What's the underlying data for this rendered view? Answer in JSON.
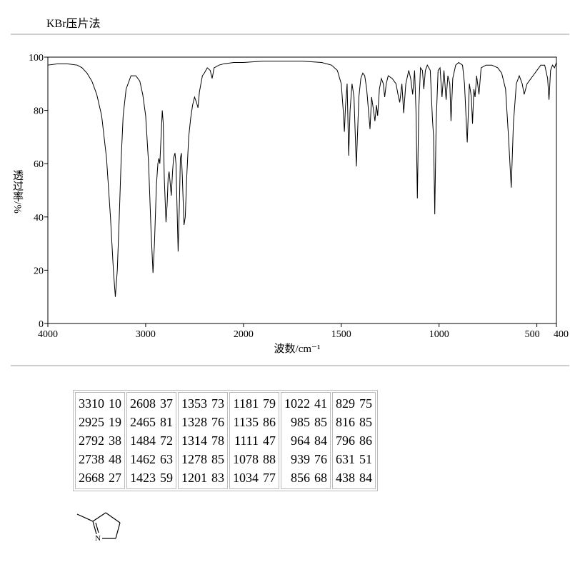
{
  "header": {
    "method": "KBr压片法"
  },
  "chart_data": {
    "type": "line",
    "xlabel": "波数/cm⁻¹",
    "ylabel": "透过率/%",
    "xlim": [
      4000,
      400
    ],
    "xticks": [
      4000,
      3000,
      2000,
      1500,
      1000,
      500,
      400
    ],
    "xscale": "two-segment",
    "xbreak": 2000,
    "ylim": [
      0,
      100
    ],
    "yticks": [
      0,
      20,
      40,
      60,
      80,
      100
    ],
    "color": "#000000",
    "x": [
      4000,
      3900,
      3800,
      3700,
      3650,
      3600,
      3550,
      3500,
      3450,
      3400,
      3360,
      3330,
      3310,
      3290,
      3270,
      3250,
      3230,
      3200,
      3150,
      3100,
      3060,
      3030,
      3000,
      2970,
      2945,
      2925,
      2910,
      2890,
      2875,
      2865,
      2855,
      2840,
      2830,
      2820,
      2810,
      2792,
      2780,
      2770,
      2760,
      2750,
      2738,
      2725,
      2715,
      2700,
      2690,
      2680,
      2668,
      2655,
      2645,
      2635,
      2625,
      2608,
      2595,
      2580,
      2560,
      2540,
      2520,
      2500,
      2480,
      2465,
      2450,
      2420,
      2400,
      2370,
      2340,
      2320,
      2300,
      2250,
      2200,
      2100,
      2000,
      1900,
      1800,
      1700,
      1600,
      1550,
      1520,
      1500,
      1490,
      1484,
      1478,
      1470,
      1462,
      1455,
      1445,
      1435,
      1423,
      1410,
      1400,
      1390,
      1380,
      1370,
      1353,
      1345,
      1335,
      1328,
      1320,
      1314,
      1305,
      1295,
      1285,
      1278,
      1270,
      1260,
      1240,
      1220,
      1210,
      1201,
      1190,
      1181,
      1170,
      1155,
      1145,
      1135,
      1125,
      1118,
      1111,
      1104,
      1095,
      1085,
      1078,
      1070,
      1060,
      1045,
      1034,
      1028,
      1022,
      1015,
      1005,
      995,
      985,
      975,
      964,
      955,
      945,
      939,
      930,
      915,
      900,
      880,
      870,
      856,
      845,
      835,
      829,
      822,
      816,
      808,
      796,
      785,
      760,
      730,
      700,
      680,
      660,
      645,
      631,
      620,
      605,
      590,
      575,
      565,
      550,
      520,
      500,
      480,
      460,
      445,
      438,
      430,
      420,
      410,
      400
    ],
    "values": [
      97,
      97.5,
      97.5,
      97,
      96,
      94,
      91,
      86,
      78,
      62,
      40,
      20,
      10,
      20,
      40,
      62,
      78,
      88,
      93,
      93,
      91,
      86,
      78,
      60,
      35,
      19,
      30,
      52,
      60,
      62,
      60,
      72,
      80,
      75,
      55,
      38,
      45,
      55,
      57,
      53,
      48,
      57,
      62,
      64,
      60,
      45,
      27,
      45,
      62,
      64,
      55,
      37,
      40,
      55,
      70,
      77,
      82,
      85,
      83,
      81,
      87,
      93,
      94,
      96,
      95,
      92,
      96,
      97,
      97.5,
      98,
      98,
      98.5,
      98.5,
      98.5,
      98,
      97,
      95,
      90,
      80,
      72,
      82,
      90,
      63,
      80,
      90,
      85,
      59,
      85,
      92,
      94,
      93,
      88,
      73,
      85,
      80,
      76,
      82,
      78,
      88,
      92,
      90,
      85,
      90,
      93,
      92,
      90,
      86,
      83,
      90,
      79,
      90,
      95,
      92,
      86,
      95,
      80,
      47,
      80,
      96,
      95,
      88,
      95,
      97,
      95,
      77,
      70,
      41,
      75,
      95,
      96,
      85,
      95,
      84,
      93,
      90,
      76,
      92,
      97,
      98,
      97,
      90,
      68,
      90,
      85,
      75,
      88,
      85,
      93,
      86,
      96,
      97,
      97,
      96,
      94,
      88,
      70,
      51,
      75,
      90,
      93,
      90,
      86,
      90,
      93,
      95,
      97,
      97,
      92,
      84,
      95,
      97,
      96,
      98
    ]
  },
  "table": {
    "columns": [
      [
        [
          3310,
          10
        ],
        [
          2925,
          19
        ],
        [
          2792,
          38
        ],
        [
          2738,
          48
        ],
        [
          2668,
          27
        ]
      ],
      [
        [
          2608,
          37
        ],
        [
          2465,
          81
        ],
        [
          1484,
          72
        ],
        [
          1462,
          63
        ],
        [
          1423,
          59
        ]
      ],
      [
        [
          1353,
          73
        ],
        [
          1328,
          76
        ],
        [
          1314,
          78
        ],
        [
          1278,
          85
        ],
        [
          1201,
          83
        ]
      ],
      [
        [
          1181,
          79
        ],
        [
          1135,
          86
        ],
        [
          1111,
          47
        ],
        [
          1078,
          88
        ],
        [
          1034,
          77
        ]
      ],
      [
        [
          1022,
          41
        ],
        [
          985,
          85
        ],
        [
          964,
          84
        ],
        [
          939,
          76
        ],
        [
          856,
          68
        ]
      ],
      [
        [
          829,
          75
        ],
        [
          816,
          85
        ],
        [
          796,
          86
        ],
        [
          631,
          51
        ],
        [
          438,
          84
        ]
      ]
    ]
  },
  "structure": {
    "atom": "N"
  }
}
